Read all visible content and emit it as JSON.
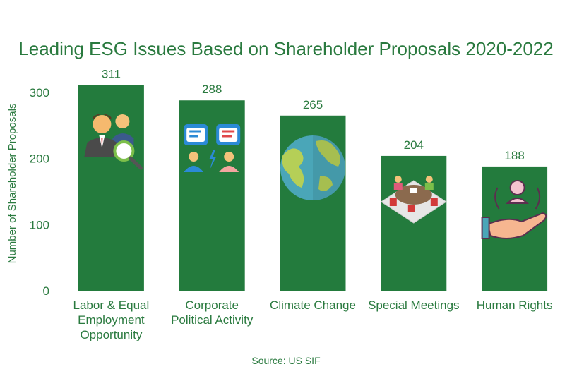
{
  "chart_data": {
    "type": "bar",
    "title": "Leading ESG Issues Based on Shareholder Proposals 2020-2022",
    "categories": [
      [
        "Labor & Equal",
        "Employment",
        "Opportunity"
      ],
      [
        "Corporate",
        "Political Activity"
      ],
      [
        "Climate Change"
      ],
      [
        "Special Meetings"
      ],
      [
        "Human Rights"
      ]
    ],
    "values": [
      311,
      288,
      265,
      204,
      188
    ],
    "value_labels": [
      "311",
      "288",
      "265",
      "204",
      "188"
    ],
    "icons": [
      "people-magnifier-icon",
      "speech-bubbles-icon",
      "globe-icon",
      "meeting-table-icon",
      "hand-person-icon"
    ],
    "ylabel": "Number of Shareholder Proposals",
    "yticks": [
      0,
      100,
      200,
      300
    ],
    "ylim": [
      0,
      330
    ],
    "grid": false,
    "source": "Source: US SIF",
    "colors": {
      "bar": "#237b3d",
      "text": "#2a7a3f"
    }
  }
}
